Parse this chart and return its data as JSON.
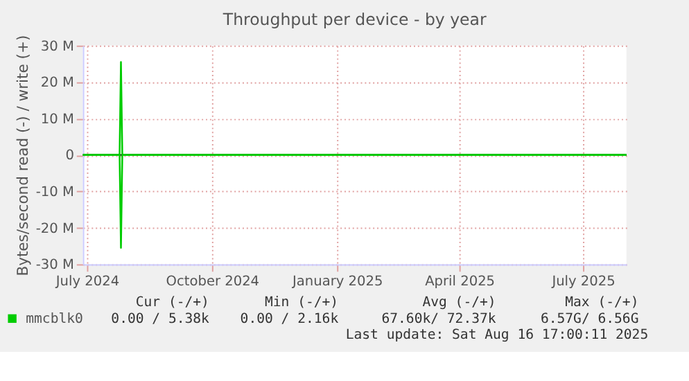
{
  "chart_data": {
    "type": "line",
    "title": "Throughput per device - by year",
    "ylabel": "Bytes/second read (-) / write (+)",
    "x": [
      "2024-07-12",
      "2024-07-19",
      "2024-07-26",
      "2024-08-02",
      "2024-08-08",
      "2024-08-09",
      "2024-08-10",
      "2024-08-17",
      "2024-08-31",
      "2024-09-14",
      "2024-09-28",
      "2024-10-12",
      "2024-10-26",
      "2024-11-09",
      "2024-11-23",
      "2024-12-07",
      "2024-12-21",
      "2025-01-04",
      "2025-01-18",
      "2025-02-01",
      "2025-02-15",
      "2025-03-01",
      "2025-03-15",
      "2025-03-29",
      "2025-04-12",
      "2025-04-26",
      "2025-05-10",
      "2025-05-24",
      "2025-06-07",
      "2025-06-21",
      "2025-07-05",
      "2025-07-19",
      "2025-08-02",
      "2025-08-16"
    ],
    "series": [
      {
        "name": "mmcblk0",
        "color": "#00cc00",
        "values": [
          0,
          0,
          0,
          0,
          0,
          25500000,
          0,
          0,
          0,
          0,
          0,
          0,
          0,
          0,
          0,
          0,
          0,
          0,
          0,
          0,
          0,
          0,
          0,
          0,
          0,
          0,
          0,
          0,
          0,
          0,
          0,
          0,
          0,
          0
        ]
      },
      {
        "color": "#00cc00",
        "values": [
          0,
          0,
          0,
          0,
          0,
          -25500000,
          0,
          0,
          0,
          0,
          0,
          0,
          0,
          0,
          0,
          0,
          0,
          0,
          0,
          0,
          0,
          0,
          0,
          0,
          0,
          0,
          0,
          0,
          0,
          0,
          0,
          0,
          0,
          0
        ]
      }
    ],
    "xlim": [
      "2024-07-12",
      "2025-08-16"
    ],
    "xticks": [
      {
        "value": "2024-07-15",
        "label": "July 2024"
      },
      {
        "value": "2024-10-15",
        "label": "October 2024"
      },
      {
        "value": "2025-01-15",
        "label": "January 2025"
      },
      {
        "value": "2025-04-15",
        "label": "April 2025"
      },
      {
        "value": "2025-07-15",
        "label": "July 2025"
      }
    ],
    "ylim": [
      -30000000,
      30000000
    ],
    "yticks": [
      {
        "value": -30000000,
        "label": "-30 M"
      },
      {
        "value": -20000000,
        "label": "-20 M"
      },
      {
        "value": -10000000,
        "label": "-10 M"
      },
      0,
      {
        "value": 10000000,
        "label": "10 M"
      },
      {
        "value": 20000000,
        "label": "20 M"
      },
      {
        "value": 30000000,
        "label": "30 M"
      }
    ],
    "ref_lines": [
      {
        "axis": "y",
        "value": 0,
        "color": "#000000"
      }
    ],
    "grid": true,
    "legend": "bottom left",
    "marker": "none",
    "line_style": "solid",
    "annotations": [
      "Cur (-/+)",
      "Min (-/+)",
      "Avg (-/+)",
      "Max (-/+)",
      "0.00 /  5.38k",
      "0.00 /  2.16k",
      "67.60k/ 72.37k",
      "6.57G/  6.56G",
      "Last update: Sat Aug 16 17:00:11 2025"
    ]
  }
}
